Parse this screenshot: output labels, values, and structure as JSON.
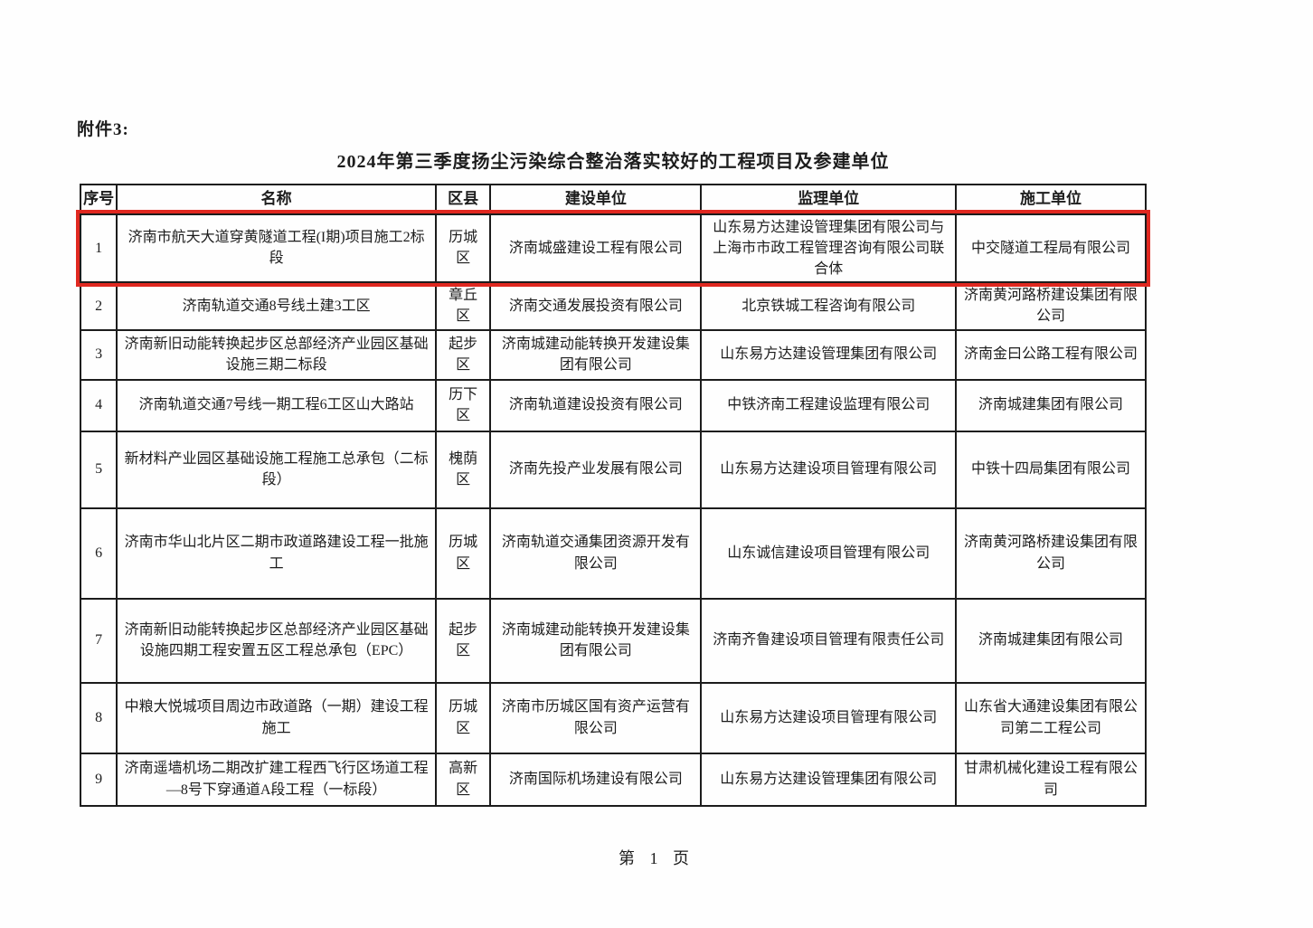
{
  "page": {
    "attachment_label": "附件3:",
    "title": "2024年第三季度扬尘污染综合整治落实较好的工程项目及参建单位",
    "footer": "第 1 页"
  },
  "colors": {
    "highlight_border": "#e02820",
    "table_border": "#1c1c1c"
  },
  "table": {
    "columns": [
      "序号",
      "名称",
      "区县",
      "建设单位",
      "监理单位",
      "施工单位"
    ],
    "rows": [
      {
        "no": "1",
        "name": "济南市航天大道穿黄隧道工程(I期)项目施工2标段",
        "district": "历城区",
        "builder": "济南城盛建设工程有限公司",
        "supervisor": "山东易方达建设管理集团有限公司与上海市市政工程管理咨询有限公司联合体",
        "contractor": "中交隧道工程局有限公司",
        "highlighted": true
      },
      {
        "no": "2",
        "name": "济南轨道交通8号线土建3工区",
        "district": "章丘区",
        "builder": "济南交通发展投资有限公司",
        "supervisor": "北京铁城工程咨询有限公司",
        "contractor": "济南黄河路桥建设集团有限公司",
        "highlighted": false
      },
      {
        "no": "3",
        "name": "济南新旧动能转换起步区总部经济产业园区基础设施三期二标段",
        "district": "起步区",
        "builder": "济南城建动能转换开发建设集团有限公司",
        "supervisor": "山东易方达建设管理集团有限公司",
        "contractor": "济南金曰公路工程有限公司",
        "highlighted": false
      },
      {
        "no": "4",
        "name": "济南轨道交通7号线一期工程6工区山大路站",
        "district": "历下区",
        "builder": "济南轨道建设投资有限公司",
        "supervisor": "中铁济南工程建设监理有限公司",
        "contractor": "济南城建集团有限公司",
        "highlighted": false
      },
      {
        "no": "5",
        "name": "新材料产业园区基础设施工程施工总承包（二标段）",
        "district": "槐荫区",
        "builder": "济南先投产业发展有限公司",
        "supervisor": "山东易方达建设项目管理有限公司",
        "contractor": "中铁十四局集团有限公司",
        "highlighted": false
      },
      {
        "no": "6",
        "name": "济南市华山北片区二期市政道路建设工程一批施工",
        "district": "历城区",
        "builder": "济南轨道交通集团资源开发有限公司",
        "supervisor": "山东诚信建设项目管理有限公司",
        "contractor": "济南黄河路桥建设集团有限公司",
        "highlighted": false
      },
      {
        "no": "7",
        "name": "济南新旧动能转换起步区总部经济产业园区基础设施四期工程安置五区工程总承包（EPC）",
        "district": "起步区",
        "builder": "济南城建动能转换开发建设集团有限公司",
        "supervisor": "济南齐鲁建设项目管理有限责任公司",
        "contractor": "济南城建集团有限公司",
        "highlighted": false
      },
      {
        "no": "8",
        "name": "中粮大悦城项目周边市政道路（一期）建设工程施工",
        "district": "历城区",
        "builder": "济南市历城区国有资产运营有限公司",
        "supervisor": "山东易方达建设项目管理有限公司",
        "contractor": "山东省大通建设集团有限公司第二工程公司",
        "highlighted": false
      },
      {
        "no": "9",
        "name": "济南遥墙机场二期改扩建工程西飞行区场道工程—8号下穿通道A段工程（一标段）",
        "district": "高新区",
        "builder": "济南国际机场建设有限公司",
        "supervisor": "山东易方达建设管理集团有限公司",
        "contractor": "甘肃机械化建设工程有限公司",
        "highlighted": false
      }
    ]
  }
}
